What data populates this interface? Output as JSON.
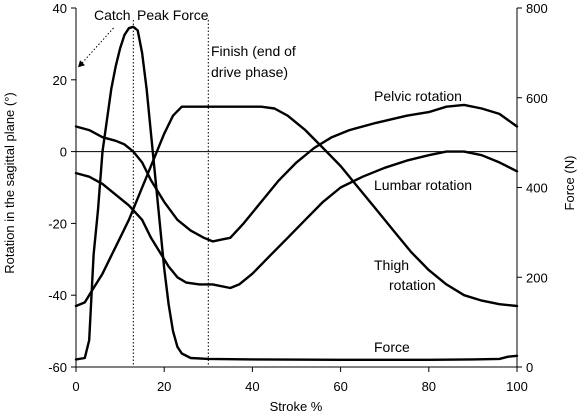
{
  "chart_data": {
    "type": "line",
    "title": "",
    "xlabel": "Stroke %",
    "ylabel": "Rotation in the sagittal plane (°)",
    "y2label": "Force (N)",
    "xlim": [
      0,
      100
    ],
    "ylim": [
      -60,
      40
    ],
    "y2lim": [
      0,
      800
    ],
    "xticks": [
      "0",
      "20",
      "40",
      "60",
      "80",
      "100"
    ],
    "yticks": [
      "40",
      "20",
      "0",
      "-20",
      "-40",
      "-60"
    ],
    "y2ticks": [
      "800",
      "600",
      "400",
      "200",
      "0"
    ],
    "x_tick_values": [
      0,
      20,
      40,
      60,
      80,
      100
    ],
    "y_tick_values": [
      40,
      20,
      0,
      -20,
      -40,
      -60
    ],
    "y2_tick_values": [
      800,
      600,
      400,
      200,
      0
    ],
    "grid": false,
    "zero_line": true,
    "series": [
      {
        "name": "Force",
        "axis": "right",
        "points": [
          [
            0,
            17
          ],
          [
            2,
            20
          ],
          [
            3,
            60
          ],
          [
            4,
            250
          ],
          [
            5,
            350
          ],
          [
            6,
            480
          ],
          [
            7,
            550
          ],
          [
            8,
            620
          ],
          [
            9,
            670
          ],
          [
            10,
            710
          ],
          [
            11,
            740
          ],
          [
            12,
            755
          ],
          [
            13,
            758
          ],
          [
            14,
            750
          ],
          [
            15,
            700
          ],
          [
            16,
            620
          ],
          [
            17,
            520
          ],
          [
            18,
            420
          ],
          [
            19,
            320
          ],
          [
            20,
            220
          ],
          [
            21,
            140
          ],
          [
            22,
            80
          ],
          [
            23,
            45
          ],
          [
            24,
            30
          ],
          [
            26,
            20
          ],
          [
            30,
            18
          ],
          [
            40,
            17
          ],
          [
            60,
            16
          ],
          [
            80,
            16
          ],
          [
            90,
            17
          ],
          [
            96,
            18
          ],
          [
            98,
            23
          ],
          [
            100,
            25
          ]
        ]
      },
      {
        "name": "Pelvic rotation",
        "axis": "left",
        "points": [
          [
            0,
            7
          ],
          [
            3,
            6
          ],
          [
            6,
            4
          ],
          [
            9,
            3
          ],
          [
            11,
            2
          ],
          [
            13,
            0
          ],
          [
            15,
            -3
          ],
          [
            17,
            -8
          ],
          [
            20,
            -14
          ],
          [
            23,
            -19
          ],
          [
            26,
            -22
          ],
          [
            29,
            -24
          ],
          [
            31,
            -25
          ],
          [
            33,
            -24.5
          ],
          [
            35,
            -24
          ],
          [
            38,
            -20
          ],
          [
            42,
            -14
          ],
          [
            46,
            -8
          ],
          [
            50,
            -3
          ],
          [
            54,
            1
          ],
          [
            58,
            4
          ],
          [
            62,
            6
          ],
          [
            68,
            8
          ],
          [
            75,
            10
          ],
          [
            80,
            11
          ],
          [
            84,
            12.5
          ],
          [
            88,
            13
          ],
          [
            92,
            12
          ],
          [
            96,
            10.5
          ],
          [
            100,
            7
          ]
        ]
      },
      {
        "name": "Lumbar rotation",
        "axis": "left",
        "points": [
          [
            0,
            -6
          ],
          [
            3,
            -7
          ],
          [
            6,
            -9
          ],
          [
            9,
            -12
          ],
          [
            12,
            -15
          ],
          [
            15,
            -19
          ],
          [
            17,
            -24
          ],
          [
            19,
            -28
          ],
          [
            21,
            -32
          ],
          [
            23,
            -35
          ],
          [
            25,
            -36.5
          ],
          [
            28,
            -37
          ],
          [
            31,
            -37
          ],
          [
            35,
            -38
          ],
          [
            37,
            -37
          ],
          [
            40,
            -34
          ],
          [
            44,
            -29
          ],
          [
            48,
            -24
          ],
          [
            52,
            -19
          ],
          [
            56,
            -14
          ],
          [
            60,
            -10
          ],
          [
            65,
            -7
          ],
          [
            70,
            -4.5
          ],
          [
            75,
            -2.5
          ],
          [
            80,
            -1
          ],
          [
            84,
            0
          ],
          [
            88,
            0
          ],
          [
            92,
            -1
          ],
          [
            96,
            -3
          ],
          [
            100,
            -5.5
          ]
        ]
      },
      {
        "name": "Thigh rotation",
        "axis": "left",
        "points": [
          [
            0,
            -43
          ],
          [
            2,
            -42
          ],
          [
            4,
            -38
          ],
          [
            6,
            -34
          ],
          [
            8,
            -29
          ],
          [
            10,
            -24
          ],
          [
            12,
            -19
          ],
          [
            14,
            -13
          ],
          [
            16,
            -7
          ],
          [
            18,
            -1
          ],
          [
            20,
            5
          ],
          [
            22,
            10
          ],
          [
            24,
            12.5
          ],
          [
            26,
            12.5
          ],
          [
            30,
            12.5
          ],
          [
            36,
            12.5
          ],
          [
            42,
            12.5
          ],
          [
            45,
            12
          ],
          [
            48,
            10
          ],
          [
            52,
            6
          ],
          [
            56,
            1
          ],
          [
            60,
            -4
          ],
          [
            64,
            -10
          ],
          [
            68,
            -16
          ],
          [
            72,
            -22
          ],
          [
            76,
            -28
          ],
          [
            80,
            -33
          ],
          [
            84,
            -37
          ],
          [
            88,
            -40
          ],
          [
            92,
            -41.5
          ],
          [
            96,
            -42.5
          ],
          [
            100,
            -43
          ]
        ]
      }
    ],
    "annotations": {
      "catch": "Catch",
      "peak_force": "Peak Force",
      "finish_line1": "Finish (end of",
      "finish_line2": "drive phase)",
      "pelvic": "Pelvic rotation",
      "lumbar": "Lumbar rotation",
      "thigh_line1": "Thigh",
      "thigh_line2": "rotation",
      "force": "Force"
    },
    "marker_lines": [
      {
        "name": "peak-force",
        "x": 13
      },
      {
        "name": "finish",
        "x": 30
      }
    ]
  }
}
